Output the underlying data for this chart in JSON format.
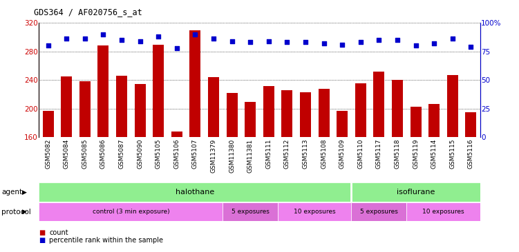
{
  "title": "GDS364 / AF020756_s_at",
  "samples": [
    "GSM5082",
    "GSM5084",
    "GSM5085",
    "GSM5086",
    "GSM5087",
    "GSM5090",
    "GSM5105",
    "GSM5106",
    "GSM5107",
    "GSM11379",
    "GSM11380",
    "GSM11381",
    "GSM5111",
    "GSM5112",
    "GSM5113",
    "GSM5108",
    "GSM5109",
    "GSM5110",
    "GSM5117",
    "GSM5118",
    "GSM5119",
    "GSM5114",
    "GSM5115",
    "GSM5116"
  ],
  "counts": [
    197,
    245,
    238,
    288,
    246,
    234,
    289,
    168,
    309,
    244,
    222,
    209,
    232,
    226,
    223,
    228,
    197,
    235,
    252,
    240,
    203,
    207,
    247,
    195
  ],
  "percentile_ranks": [
    80,
    86,
    86,
    90,
    85,
    84,
    88,
    78,
    90,
    86,
    84,
    83,
    84,
    83,
    83,
    82,
    81,
    83,
    85,
    85,
    80,
    82,
    86,
    79
  ],
  "ylim_left": [
    160,
    320
  ],
  "ylim_right": [
    0,
    100
  ],
  "yticks_left": [
    160,
    200,
    240,
    280,
    320
  ],
  "yticks_right": [
    0,
    25,
    50,
    75,
    100
  ],
  "bar_color": "#c00000",
  "dot_color": "#0000cc",
  "background_color": "#ffffff",
  "halothane_count": 17,
  "agent_colors": [
    "#90ee90",
    "#90ee90"
  ],
  "agent_labels": [
    "halothane",
    "isoflurane"
  ],
  "agent_splits": [
    17,
    24
  ],
  "protocol_groups": [
    {
      "label": "control (3 min exposure)",
      "start": 0,
      "end": 10,
      "color": "#ee82ee"
    },
    {
      "label": "5 exposures",
      "start": 10,
      "end": 13,
      "color": "#da70d6"
    },
    {
      "label": "10 exposures",
      "start": 13,
      "end": 17,
      "color": "#ee82ee"
    },
    {
      "label": "5 exposures",
      "start": 17,
      "end": 20,
      "color": "#da70d6"
    },
    {
      "label": "10 exposures",
      "start": 20,
      "end": 24,
      "color": "#ee82ee"
    }
  ],
  "legend_items": [
    {
      "label": "count",
      "color": "#c00000"
    },
    {
      "label": "percentile rank within the sample",
      "color": "#0000cc"
    }
  ]
}
